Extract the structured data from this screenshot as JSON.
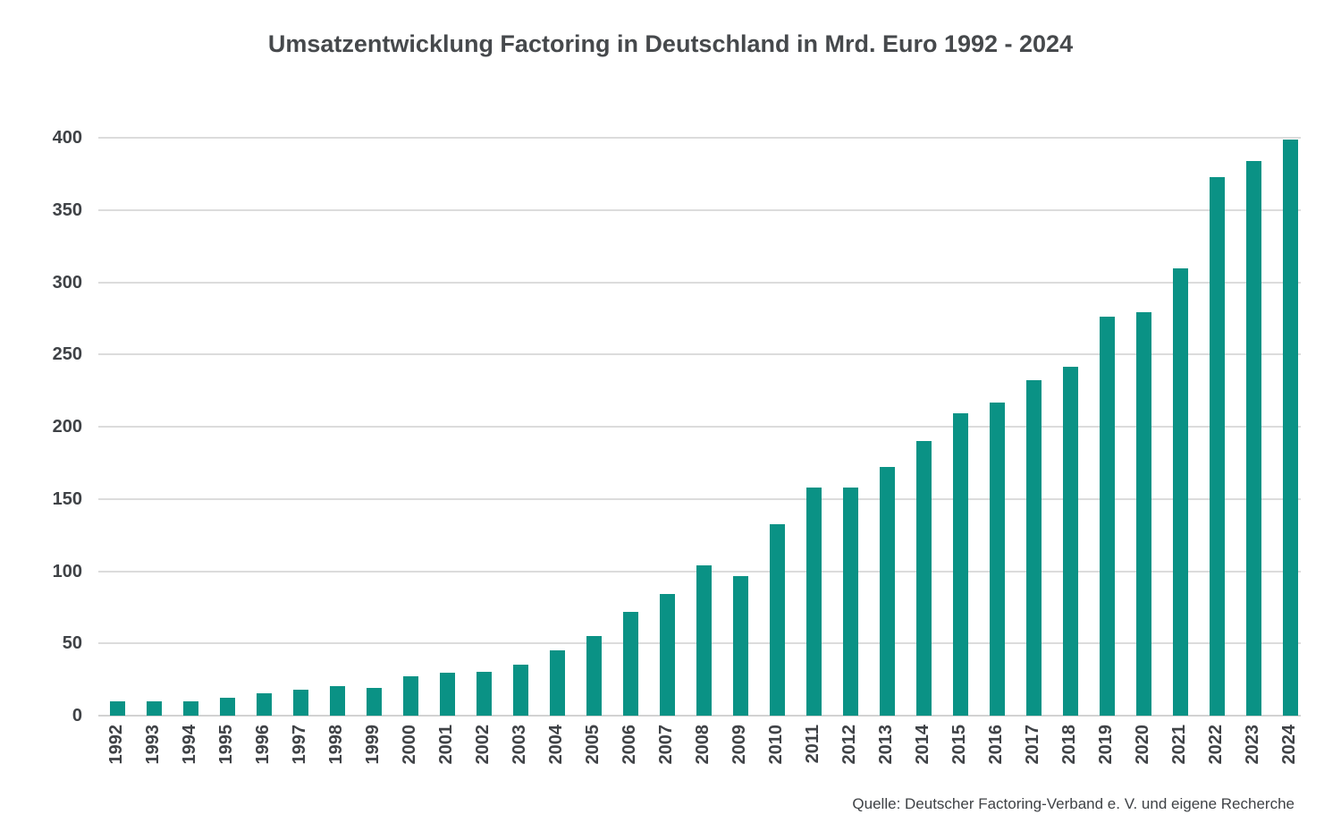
{
  "chart_data": {
    "type": "bar",
    "title": "Umsatzentwicklung Factoring in Deutschland in Mrd. Euro 1992 - 2024",
    "source": "Quelle: Deutscher Factoring-Verband e. V. und eigene Recherche",
    "unit": "Mrd. Euro",
    "categories": [
      "1992",
      "1993",
      "1994",
      "1995",
      "1996",
      "1997",
      "1998",
      "1999",
      "2000",
      "2001",
      "2002",
      "2003",
      "2004",
      "2005",
      "2006",
      "2007",
      "2008",
      "2009",
      "2010",
      "2011",
      "2012",
      "2013",
      "2014",
      "2015",
      "2016",
      "2017",
      "2018",
      "2019",
      "2020",
      "2021",
      "2022",
      "2023",
      "2024"
    ],
    "values": [
      10,
      10,
      10,
      12.5,
      15.5,
      18,
      20.5,
      19.5,
      27.5,
      29.5,
      30.5,
      35,
      45.5,
      55,
      72,
      84,
      104,
      96.5,
      132.5,
      158,
      158,
      172,
      190,
      209.5,
      217,
      232.5,
      241.5,
      276,
      279.5,
      309.5,
      372.5,
      384,
      398.5
    ],
    "ylim": [
      0,
      400
    ],
    "yticks": [
      0,
      50,
      100,
      150,
      200,
      250,
      300,
      350,
      400
    ],
    "grid": true,
    "legend": "none",
    "bar_color": "#0a9285",
    "text_color": "#3f4246",
    "grid_color": "#dcdcdc",
    "background_color": "#ffffff"
  }
}
